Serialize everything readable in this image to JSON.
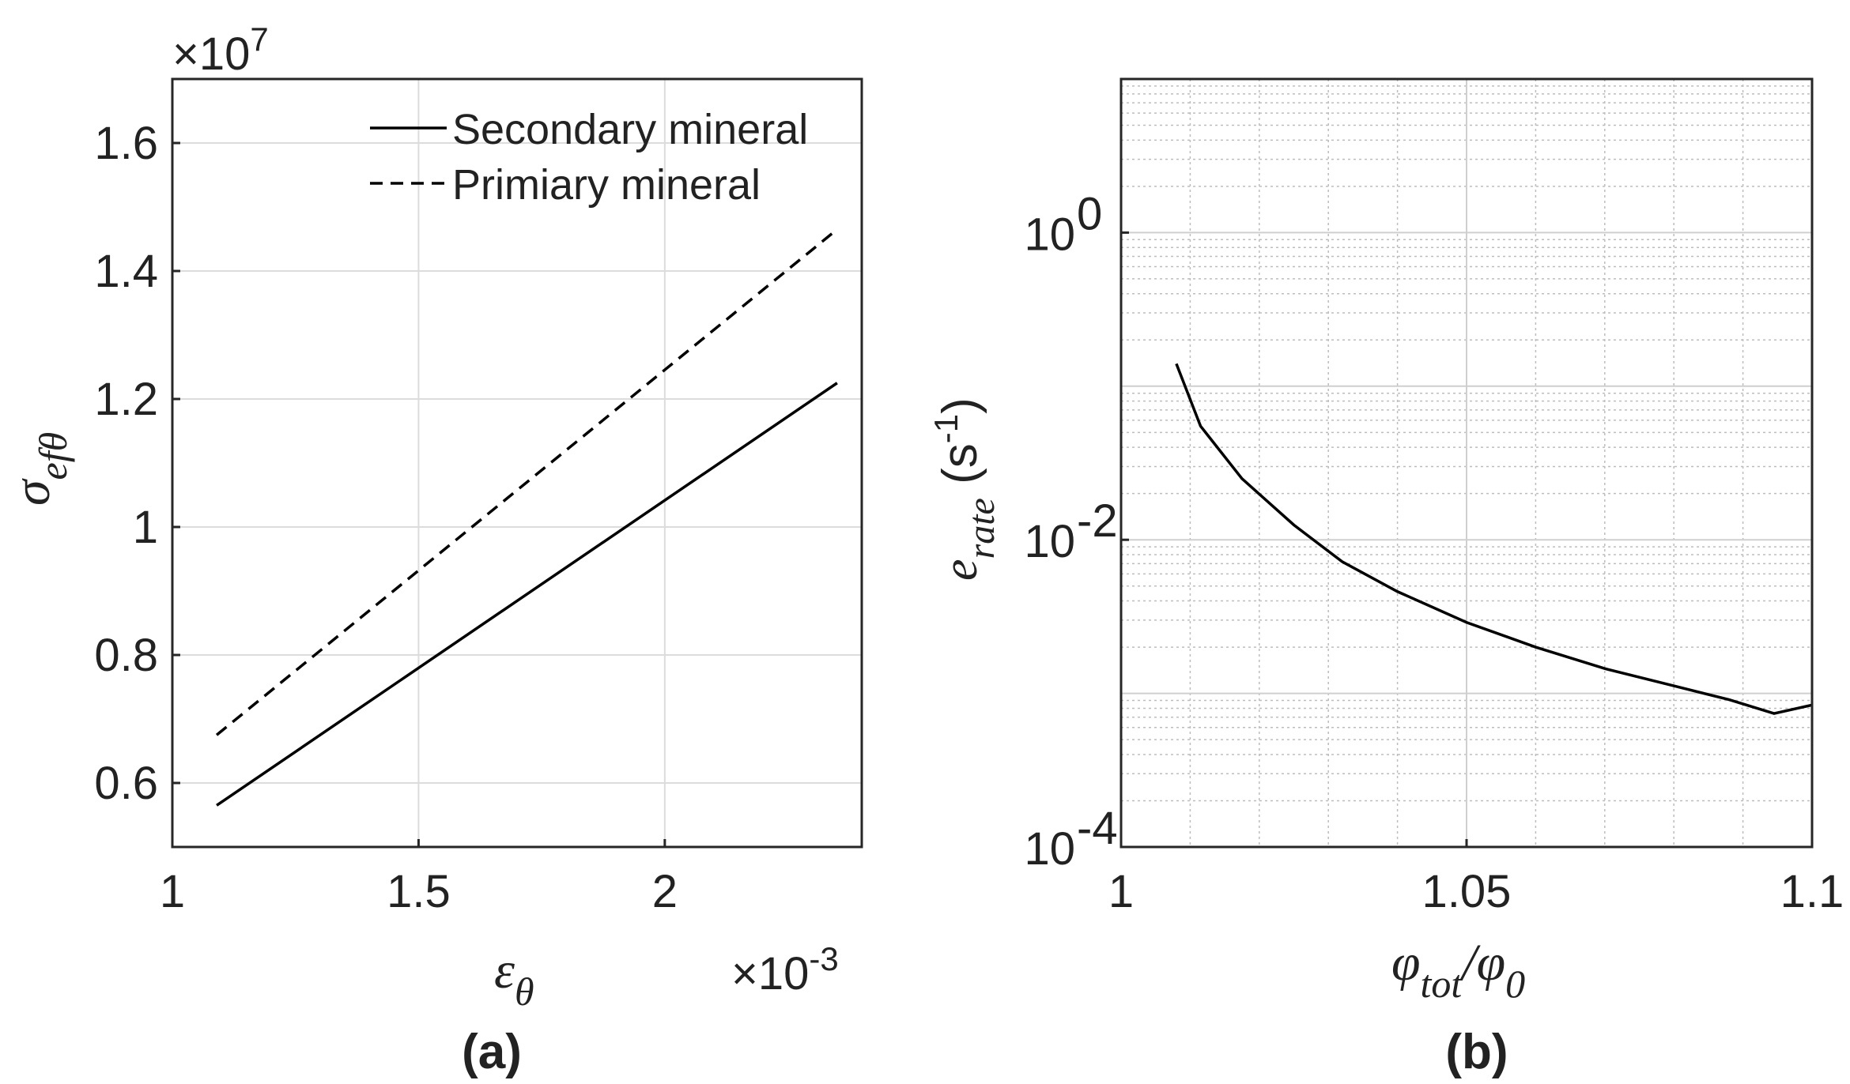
{
  "chart_data": [
    {
      "type": "line",
      "panel_label": "(a)",
      "xlabel": "ε",
      "xlabel_sub": "θ",
      "ylabel": "σ",
      "ylabel_sub": "efθ",
      "x_exponent_prefix": "×10",
      "x_exponent": "-3",
      "y_exponent_prefix": "×10",
      "y_exponent": "7",
      "xlim": [
        1.0,
        2.4
      ],
      "ylim": [
        0.5,
        1.7
      ],
      "xticks": [
        1,
        1.5,
        2
      ],
      "xtick_labels": [
        "1",
        "1.5",
        "2"
      ],
      "yticks": [
        0.6,
        0.8,
        1.0,
        1.2,
        1.4,
        1.6
      ],
      "ytick_labels": [
        "0.6",
        "0.8",
        "1",
        "1.2",
        "1.4",
        "1.6"
      ],
      "grid": true,
      "legend_position": "top-right",
      "series": [
        {
          "name": "Secondary mineral",
          "style": "solid",
          "x": [
            1.09,
            2.35
          ],
          "y": [
            0.565,
            1.225
          ]
        },
        {
          "name": "Primiary mineral",
          "style": "dashed",
          "x": [
            1.09,
            2.35
          ],
          "y": [
            0.675,
            1.465
          ]
        }
      ]
    },
    {
      "type": "line",
      "panel_label": "(b)",
      "xlabel": "φ",
      "xlabel_sub": "tot",
      "xlabel_sep": "/φ",
      "xlabel_sub2": "0",
      "ylabel": "e",
      "ylabel_sub": "rate",
      "ylabel_unit_pre": " (s",
      "ylabel_unit_sup": "-1",
      "ylabel_unit_post": ")",
      "xlim": [
        1.0,
        1.1
      ],
      "yscale": "log",
      "ylim": [
        0.0001,
        10
      ],
      "xticks": [
        1,
        1.05,
        1.1
      ],
      "xtick_labels": [
        "1",
        "1.05",
        "1.1"
      ],
      "ytick_bases": [
        "10",
        "10",
        "10"
      ],
      "ytick_exps": [
        "-4",
        "-2",
        "0"
      ],
      "grid": true,
      "series": [
        {
          "name": "e_rate",
          "style": "solid",
          "x": [
            1.008,
            1.0115,
            1.0175,
            1.025,
            1.032,
            1.04,
            1.05,
            1.06,
            1.07,
            1.08,
            1.088,
            1.0945,
            1.1
          ],
          "y": [
            0.14,
            0.055,
            0.025,
            0.0125,
            0.0072,
            0.0046,
            0.0029,
            0.002,
            0.00145,
            0.00112,
            0.00091,
            0.00074,
            0.00084
          ]
        }
      ]
    }
  ]
}
